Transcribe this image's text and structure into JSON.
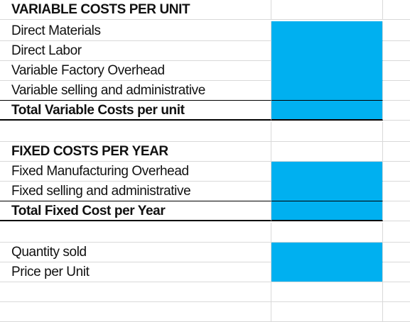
{
  "rows": {
    "r1": "VARIABLE COSTS PER UNIT",
    "r2": "Direct Materials",
    "r3": "Direct Labor",
    "r4": "Variable Factory Overhead",
    "r5": "Variable selling and administrative",
    "r6": "Total Variable Costs per unit",
    "r8": "FIXED COSTS PER YEAR",
    "r9": "Fixed Manufacturing Overhead",
    "r10": "Fixed selling and administrative",
    "r11": "Total Fixed Cost per Year",
    "r13": "Quantity sold",
    "r14": "Price per Unit"
  },
  "colors": {
    "input_fill": "#00b0f0",
    "grid": "#d9d9d9"
  }
}
